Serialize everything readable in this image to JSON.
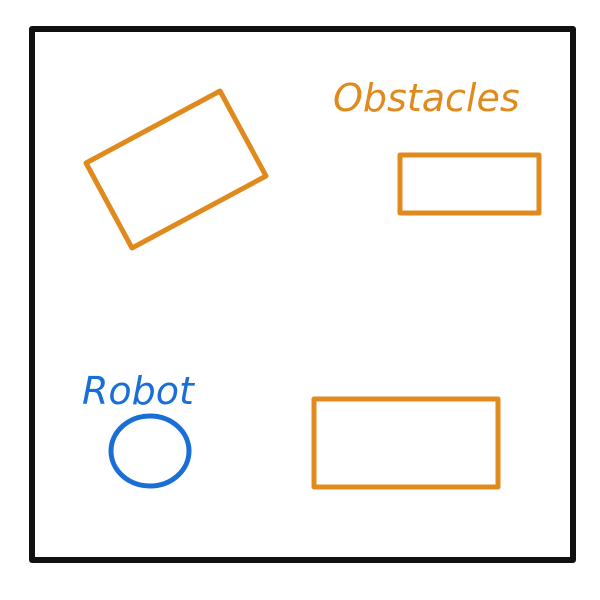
{
  "diagram": {
    "labels": {
      "obstacles": "Obstacles",
      "robot": "Robot"
    },
    "colors": {
      "boundary": "#111111",
      "obstacle": "#E08A1E",
      "robot": "#1A6FD6"
    },
    "obstacle_count": 3,
    "robot_shape": "circle",
    "obstacle_shape": "rectangle"
  }
}
